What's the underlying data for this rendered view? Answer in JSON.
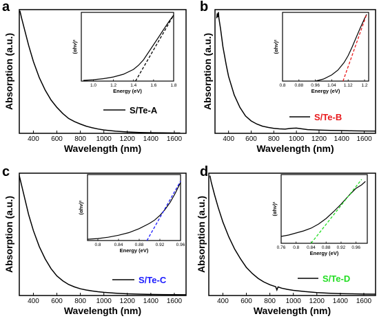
{
  "chart_data": [
    {
      "id": "a",
      "type": "line",
      "panel_label": "a",
      "xlabel": "Wavelength (nm)",
      "ylabel": "Absorption (a.u.)",
      "xlim": [
        280,
        1700
      ],
      "xticks": [
        400,
        600,
        800,
        1000,
        1200,
        1400,
        1600
      ],
      "ylim": [
        0,
        1
      ],
      "legend": {
        "label": "S/Te-A",
        "color": "#000000",
        "position": "bottom-right"
      },
      "series": [
        {
          "x": [
            285,
            300,
            330,
            360,
            400,
            450,
            500,
            550,
            600,
            650,
            700,
            750,
            800,
            850,
            900,
            950,
            1000,
            1100,
            1200,
            1300,
            1400,
            1500,
            1600,
            1650
          ],
          "y": [
            0.99,
            0.93,
            0.82,
            0.71,
            0.58,
            0.45,
            0.35,
            0.27,
            0.21,
            0.16,
            0.12,
            0.095,
            0.075,
            0.058,
            0.045,
            0.035,
            0.027,
            0.017,
            0.011,
            0.007,
            0.005,
            0.004,
            0.003,
            0.003
          ]
        }
      ],
      "inset": {
        "xlabel": "Energy (eV)",
        "ylabel": "(αhν)²",
        "xlim": [
          0.88,
          1.8
        ],
        "xticks": [
          1.0,
          1.2,
          1.4,
          1.6,
          1.8
        ],
        "ylim": [
          0,
          1
        ],
        "curve": {
          "x": [
            0.9,
            1.0,
            1.1,
            1.2,
            1.3,
            1.4,
            1.45,
            1.5,
            1.55,
            1.6,
            1.65,
            1.7,
            1.75,
            1.8
          ],
          "y": [
            0.01,
            0.02,
            0.035,
            0.06,
            0.1,
            0.17,
            0.23,
            0.31,
            0.42,
            0.53,
            0.64,
            0.75,
            0.86,
            0.96
          ]
        },
        "fit": {
          "x": [
            1.42,
            1.8
          ],
          "y": [
            0,
            0.96
          ],
          "color": "#000000"
        }
      }
    },
    {
      "id": "b",
      "type": "line",
      "panel_label": "b",
      "xlabel": "Wavelength (nm)",
      "ylabel": "Absorption (a.u.)",
      "xlim": [
        280,
        1700
      ],
      "xticks": [
        400,
        600,
        800,
        1000,
        1200,
        1400,
        1600
      ],
      "ylim": [
        0,
        1
      ],
      "legend": {
        "label": "S/Te-B",
        "color": "#e8191c",
        "position": "bottom-right"
      },
      "series": [
        {
          "x": [
            295,
            300,
            305,
            310,
            315,
            330,
            350,
            380,
            400,
            450,
            500,
            550,
            600,
            650,
            700,
            750,
            800,
            850,
            900,
            950,
            1000,
            1050,
            1100,
            1200,
            1300,
            1400,
            1500,
            1600,
            1700
          ],
          "y": [
            0.93,
            0.97,
            0.94,
            0.98,
            0.93,
            0.84,
            0.7,
            0.55,
            0.46,
            0.31,
            0.21,
            0.14,
            0.1,
            0.075,
            0.058,
            0.048,
            0.04,
            0.036,
            0.034,
            0.04,
            0.042,
            0.036,
            0.03,
            0.026,
            0.024,
            0.022,
            0.02,
            0.019,
            0.018
          ]
        }
      ],
      "inset": {
        "xlabel": "Energy (eV)",
        "ylabel": "(αhν)²",
        "xlim": [
          0.8,
          1.22
        ],
        "xticks": [
          0.8,
          0.88,
          0.96,
          1.04,
          1.12,
          1.2
        ],
        "ylim": [
          0,
          1
        ],
        "curve": {
          "x": [
            0.96,
            1.0,
            1.04,
            1.07,
            1.1,
            1.12,
            1.14,
            1.16,
            1.18,
            1.2,
            1.21
          ],
          "y": [
            0.0,
            0.03,
            0.09,
            0.16,
            0.27,
            0.37,
            0.5,
            0.64,
            0.78,
            0.91,
            0.97
          ]
        },
        "fit": {
          "x": [
            1.095,
            1.21
          ],
          "y": [
            0,
            0.97
          ],
          "color": "#e8191c"
        }
      }
    },
    {
      "id": "c",
      "type": "line",
      "panel_label": "c",
      "xlabel": "Wavelength (nm)",
      "ylabel": "Absorption (a.u.)",
      "xlim": [
        280,
        1700
      ],
      "xticks": [
        400,
        600,
        800,
        1000,
        1200,
        1400,
        1600
      ],
      "ylim": [
        0,
        1
      ],
      "legend": {
        "label": "S/Te-C",
        "color": "#1a1aff",
        "position": "bottom-right"
      },
      "series": [
        {
          "x": [
            280,
            300,
            330,
            360,
            400,
            450,
            500,
            550,
            600,
            650,
            700,
            750,
            800,
            850,
            900,
            950,
            1000,
            1100,
            1200,
            1300,
            1400,
            1500,
            1600,
            1700
          ],
          "y": [
            0.98,
            0.9,
            0.78,
            0.66,
            0.53,
            0.4,
            0.3,
            0.22,
            0.16,
            0.12,
            0.09,
            0.07,
            0.055,
            0.045,
            0.037,
            0.031,
            0.026,
            0.019,
            0.014,
            0.011,
            0.009,
            0.008,
            0.007,
            0.006
          ]
        }
      ],
      "inset": {
        "xlabel": "Energy (eV)",
        "ylabel": "(αhν)²",
        "xlim": [
          0.78,
          0.96
        ],
        "xticks": [
          0.8,
          0.84,
          0.88,
          0.92,
          0.96
        ],
        "ylim": [
          0,
          1
        ],
        "curve": {
          "x": [
            0.78,
            0.8,
            0.82,
            0.84,
            0.86,
            0.88,
            0.9,
            0.91,
            0.92,
            0.93,
            0.94,
            0.95,
            0.96
          ],
          "y": [
            0.02,
            0.03,
            0.05,
            0.08,
            0.12,
            0.18,
            0.26,
            0.31,
            0.38,
            0.47,
            0.58,
            0.72,
            0.88
          ]
        },
        "fit": {
          "x": [
            0.895,
            0.96
          ],
          "y": [
            0,
            0.9
          ],
          "color": "#1a1aff"
        }
      }
    },
    {
      "id": "d",
      "type": "line",
      "panel_label": "d",
      "xlabel": "Wavelength (nm)",
      "ylabel": "Absorption (a.u.)",
      "xlim": [
        280,
        1700
      ],
      "xticks": [
        400,
        600,
        800,
        1000,
        1200,
        1400,
        1600
      ],
      "ylim": [
        0,
        1
      ],
      "legend": {
        "label": "S/Te-D",
        "color": "#22dd22",
        "position": "bottom-right"
      },
      "series": [
        {
          "x": [
            290,
            300,
            330,
            360,
            400,
            450,
            500,
            550,
            600,
            650,
            700,
            750,
            800,
            850,
            860,
            870,
            900,
            950,
            1000,
            1100,
            1200,
            1300,
            1400,
            1500,
            1600,
            1700
          ],
          "y": [
            0.98,
            0.93,
            0.82,
            0.72,
            0.6,
            0.48,
            0.38,
            0.3,
            0.23,
            0.18,
            0.14,
            0.11,
            0.088,
            0.072,
            0.045,
            0.07,
            0.06,
            0.05,
            0.042,
            0.032,
            0.024,
            0.019,
            0.016,
            0.014,
            0.012,
            0.011
          ]
        }
      ],
      "inset": {
        "xlabel": "Energy (eV)",
        "ylabel": "(αhν)²",
        "xlim": [
          0.76,
          0.99
        ],
        "xticks": [
          0.76,
          0.8,
          0.84,
          0.88,
          0.92,
          0.96
        ],
        "ylim": [
          0,
          1
        ],
        "curve": {
          "x": [
            0.76,
            0.78,
            0.8,
            0.82,
            0.84,
            0.86,
            0.88,
            0.9,
            0.92,
            0.94,
            0.96,
            0.975,
            0.985
          ],
          "y": [
            0.1,
            0.12,
            0.15,
            0.18,
            0.22,
            0.28,
            0.36,
            0.46,
            0.57,
            0.69,
            0.8,
            0.85,
            0.9
          ]
        },
        "fit": {
          "x": [
            0.84,
            0.975
          ],
          "y": [
            0.0,
            0.93
          ],
          "color": "#22dd22"
        }
      }
    }
  ]
}
